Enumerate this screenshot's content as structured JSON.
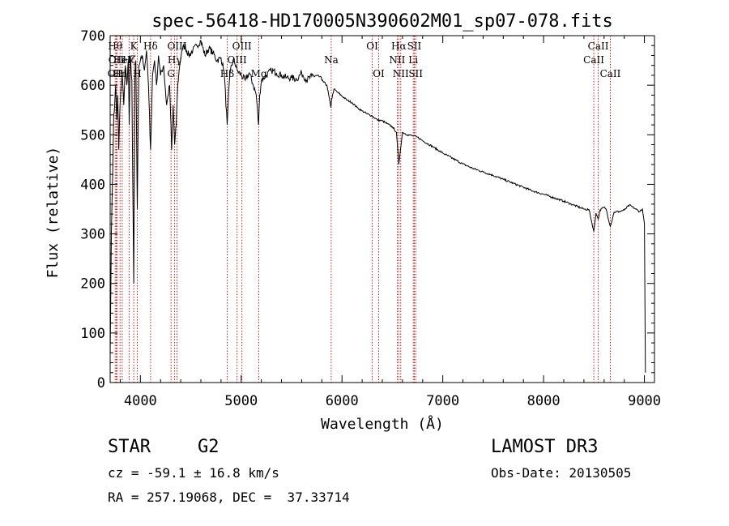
{
  "chart_data": {
    "type": "line",
    "title": "spec-56418-HD170005N390602M01_sp07-078.fits",
    "xlabel": "Wavelength (Å)",
    "ylabel": "Flux (relative)",
    "xlim": [
      3700,
      9100
    ],
    "ylim": [
      0,
      700
    ],
    "x_ticks": [
      4000,
      5000,
      6000,
      7000,
      8000,
      9000
    ],
    "y_ticks": [
      0,
      100,
      200,
      300,
      400,
      500,
      600,
      700
    ],
    "series": [
      {
        "name": "flux",
        "x": [
          3700,
          3712,
          3725,
          3735,
          3745,
          3755,
          3765,
          3775,
          3785,
          3798,
          3810,
          3820,
          3835,
          3850,
          3865,
          3880,
          3889,
          3900,
          3915,
          3934,
          3945,
          3955,
          3969,
          3985,
          4000,
          4020,
          4040,
          4060,
          4080,
          4101,
          4120,
          4140,
          4160,
          4180,
          4200,
          4230,
          4260,
          4290,
          4310,
          4325,
          4340,
          4355,
          4370,
          4390,
          4410,
          4440,
          4480,
          4520,
          4560,
          4600,
          4640,
          4680,
          4720,
          4760,
          4800,
          4830,
          4861,
          4880,
          4900,
          4930,
          4960,
          5000,
          5040,
          5080,
          5120,
          5150,
          5172,
          5183,
          5200,
          5250,
          5300,
          5350,
          5400,
          5450,
          5500,
          5550,
          5600,
          5650,
          5700,
          5750,
          5800,
          5850,
          5890,
          5896,
          5920,
          5960,
          6000,
          6050,
          6100,
          6150,
          6200,
          6250,
          6300,
          6350,
          6400,
          6450,
          6500,
          6540,
          6563,
          6580,
          6600,
          6650,
          6700,
          6750,
          6800,
          6900,
          7000,
          7100,
          7200,
          7300,
          7400,
          7500,
          7600,
          7700,
          7800,
          7900,
          8000,
          8100,
          8200,
          8300,
          8400,
          8450,
          8498,
          8520,
          8542,
          8560,
          8600,
          8620,
          8662,
          8700,
          8750,
          8800,
          8850,
          8900,
          8950,
          8980,
          9000,
          9010
        ],
        "values": [
          50,
          300,
          420,
          540,
          560,
          600,
          530,
          580,
          470,
          560,
          600,
          620,
          560,
          640,
          600,
          650,
          520,
          660,
          610,
          200,
          620,
          650,
          350,
          640,
          650,
          660,
          630,
          670,
          600,
          470,
          620,
          650,
          600,
          660,
          620,
          640,
          560,
          600,
          470,
          560,
          480,
          520,
          600,
          640,
          670,
          680,
          660,
          670,
          680,
          690,
          660,
          675,
          665,
          650,
          655,
          630,
          520,
          600,
          640,
          650,
          630,
          620,
          610,
          625,
          600,
          580,
          520,
          580,
          610,
          620,
          630,
          625,
          620,
          615,
          615,
          612,
          625,
          610,
          618,
          620,
          610,
          600,
          555,
          570,
          592,
          585,
          578,
          570,
          565,
          555,
          548,
          542,
          538,
          530,
          528,
          522,
          516,
          505,
          440,
          470,
          505,
          500,
          498,
          495,
          488,
          476,
          463,
          452,
          441,
          432,
          425,
          418,
          410,
          402,
          394,
          386,
          380,
          373,
          366,
          358,
          350,
          349,
          305,
          342,
          330,
          348,
          354,
          350,
          315,
          344,
          345,
          348,
          358,
          352,
          345,
          350,
          320,
          20
        ]
      }
    ],
    "spectral_lines": [
      {
        "wl": 3750,
        "label": "Hθ",
        "row": 0
      },
      {
        "wl": 3760,
        "label": "OII",
        "row": 1
      },
      {
        "wl": 3770,
        "label": "OIII",
        "row": 2
      },
      {
        "wl": 3798,
        "label": "Hη",
        "row": 2
      },
      {
        "wl": 3820,
        "label": "HeI",
        "row": 1
      },
      {
        "wl": 3889,
        "label": "Hζ",
        "row": 1
      },
      {
        "wl": 3934,
        "label": "K",
        "row": 0
      },
      {
        "wl": 3969,
        "label": "H",
        "row": 2
      },
      {
        "wl": 4101,
        "label": "Hδ",
        "row": 0
      },
      {
        "wl": 4304,
        "label": "G",
        "row": 2
      },
      {
        "wl": 4340,
        "label": "Hγ",
        "row": 1
      },
      {
        "wl": 4363,
        "label": "OIII",
        "row": 0
      },
      {
        "wl": 4861,
        "label": "Hβ",
        "row": 2
      },
      {
        "wl": 4959,
        "label": "OIII",
        "row": 1
      },
      {
        "wl": 5007,
        "label": "OIII",
        "row": 0
      },
      {
        "wl": 5175,
        "label": "Mg",
        "row": 2
      },
      {
        "wl": 5893,
        "label": "Na",
        "row": 1
      },
      {
        "wl": 6300,
        "label": "OI",
        "row": 0
      },
      {
        "wl": 6364,
        "label": "OI",
        "row": 2
      },
      {
        "wl": 6548,
        "label": "NII",
        "row": 1
      },
      {
        "wl": 6563,
        "label": "Hα",
        "row": 0
      },
      {
        "wl": 6583,
        "label": "NII",
        "row": 2
      },
      {
        "wl": 6707,
        "label": "Li",
        "row": 1
      },
      {
        "wl": 6717,
        "label": "SII",
        "row": 0
      },
      {
        "wl": 6731,
        "label": "SII",
        "row": 2
      },
      {
        "wl": 8498,
        "label": "CaII",
        "row": 1
      },
      {
        "wl": 8542,
        "label": "CaII",
        "row": 0
      },
      {
        "wl": 8662,
        "label": "CaII",
        "row": 2
      }
    ]
  },
  "info": {
    "object_type": "STAR",
    "subclass": "G2",
    "survey": "LAMOST DR3",
    "cz": "cz = -59.1 ± 16.8 km/s",
    "obs_date": "Obs-Date: 20130505",
    "coords": "RA = 257.19068, DEC =  37.33714"
  },
  "colors": {
    "axis": "#000000",
    "spectrum": "#000000",
    "line_marker": "#cc0000",
    "background": "#ffffff"
  }
}
